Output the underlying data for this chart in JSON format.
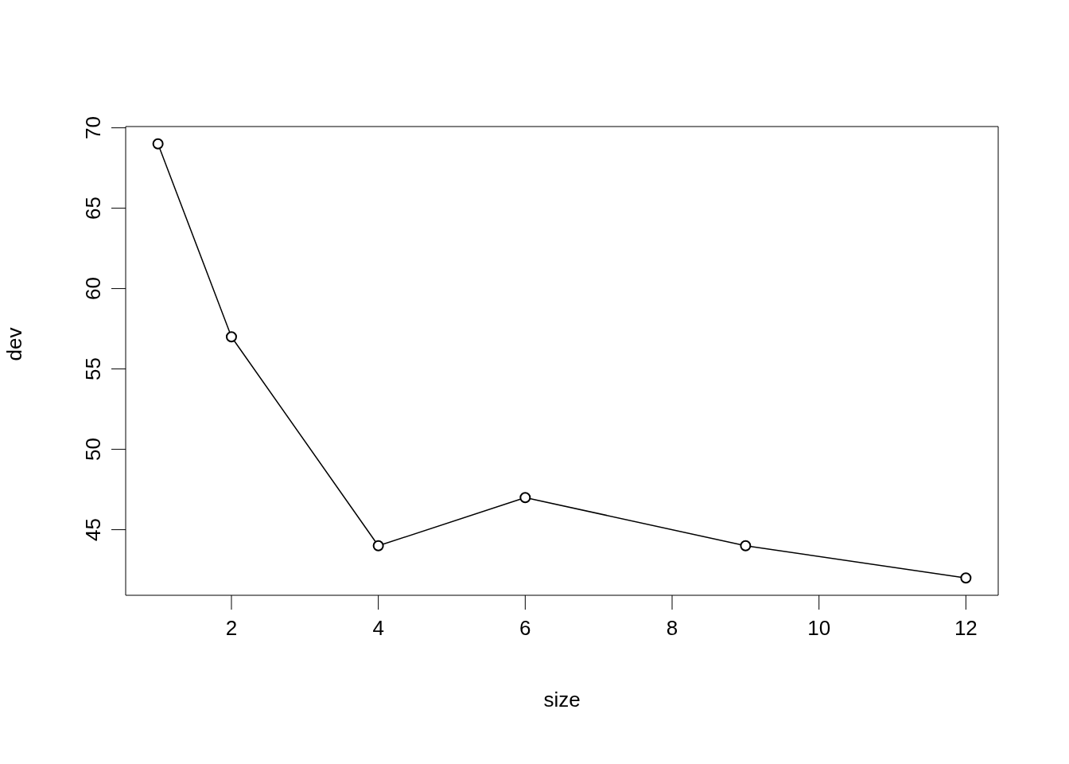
{
  "chart_data": {
    "type": "line",
    "xlabel": "size",
    "ylabel": "dev",
    "x": [
      1,
      2,
      4,
      6,
      9,
      12
    ],
    "series": [
      {
        "color": "#000000",
        "values": [
          69,
          57,
          44,
          47,
          44,
          42
        ]
      }
    ],
    "xlim": [
      0.56,
      12.44
    ],
    "ylim": [
      40.92,
      70.08
    ],
    "xticks": [
      2,
      4,
      6,
      8,
      10,
      12
    ],
    "yticks": [
      45,
      50,
      55,
      60,
      65,
      70
    ],
    "marker": "circle",
    "line_style": "solid"
  }
}
